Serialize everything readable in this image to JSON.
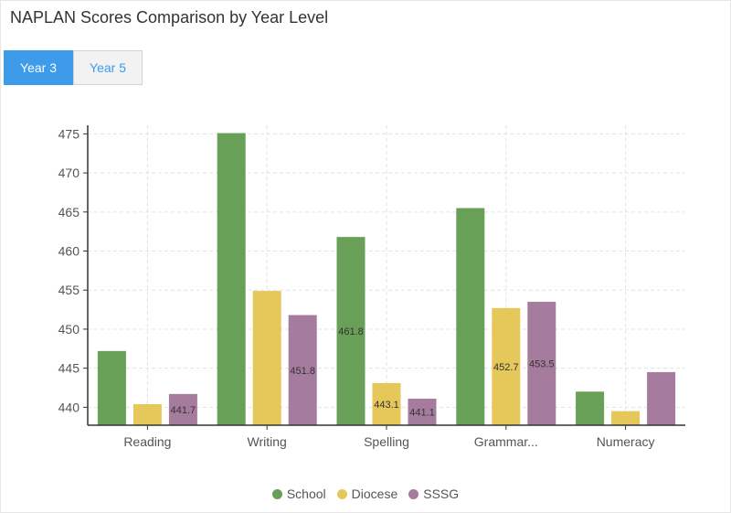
{
  "title": "NAPLAN Scores Comparison by Year Level",
  "tabs": [
    {
      "label": "Year 3",
      "active": true
    },
    {
      "label": "Year 5",
      "active": false
    }
  ],
  "colors": {
    "accent": "#3d9be9"
  },
  "chart_data": {
    "type": "bar",
    "categories": [
      "Reading",
      "Writing",
      "Spelling",
      "Grammar...",
      "Numeracy"
    ],
    "series": [
      {
        "name": "School",
        "color": "#69a057",
        "values": [
          447.2,
          475.1,
          461.8,
          465.5,
          442.0
        ],
        "labels": [
          null,
          null,
          "461.8",
          null,
          null
        ]
      },
      {
        "name": "Diocese",
        "color": "#e6c75a",
        "values": [
          440.4,
          454.9,
          443.1,
          452.7,
          439.5
        ],
        "labels": [
          null,
          null,
          "443.1",
          "452.7",
          null
        ]
      },
      {
        "name": "SSSG",
        "color": "#a67c9e",
        "values": [
          441.7,
          451.8,
          441.1,
          453.5,
          444.5
        ],
        "labels": [
          "441.7",
          "451.8",
          "441.1",
          "453.5",
          null
        ]
      }
    ],
    "yticks": [
      440,
      445,
      450,
      455,
      460,
      465,
      470,
      475
    ],
    "ylim": [
      437.7,
      476.1
    ],
    "grid": true,
    "legend": "bottom"
  }
}
